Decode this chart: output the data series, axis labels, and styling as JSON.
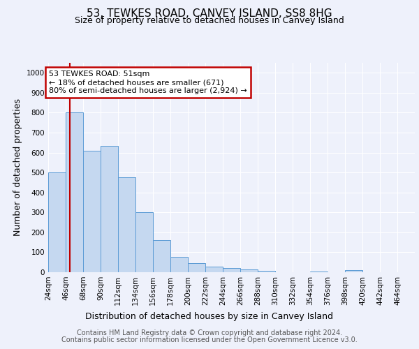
{
  "title": "53, TEWKES ROAD, CANVEY ISLAND, SS8 8HG",
  "subtitle": "Size of property relative to detached houses in Canvey Island",
  "xlabel": "Distribution of detached houses by size in Canvey Island",
  "ylabel": "Number of detached properties",
  "footer_line1": "Contains HM Land Registry data © Crown copyright and database right 2024.",
  "footer_line2": "Contains public sector information licensed under the Open Government Licence v3.0.",
  "bin_starts": [
    24,
    46,
    68,
    90,
    112,
    134,
    156,
    178,
    200,
    222,
    244,
    266,
    288,
    310,
    332,
    354,
    376,
    398,
    420,
    442
  ],
  "bin_width": 22,
  "bar_values": [
    500,
    800,
    610,
    635,
    475,
    300,
    160,
    78,
    47,
    27,
    22,
    13,
    8,
    0,
    0,
    5,
    0,
    10,
    0,
    0
  ],
  "bar_color": "#c5d8f0",
  "bar_edge_color": "#5b9bd5",
  "property_size": 51,
  "property_label": "53 TEWKES ROAD: 51sqm",
  "annotation_line1": "← 18% of detached houses are smaller (671)",
  "annotation_line2": "80% of semi-detached houses are larger (2,924) →",
  "vline_color": "#c00000",
  "annotation_box_edge_color": "#c00000",
  "xlim_start": 24,
  "xlim_end": 464,
  "ylim": [
    0,
    1050
  ],
  "yticks": [
    0,
    100,
    200,
    300,
    400,
    500,
    600,
    700,
    800,
    900,
    1000
  ],
  "xtick_labels": [
    "24sqm",
    "46sqm",
    "68sqm",
    "90sqm",
    "112sqm",
    "134sqm",
    "156sqm",
    "178sqm",
    "200sqm",
    "222sqm",
    "244sqm",
    "266sqm",
    "288sqm",
    "310sqm",
    "332sqm",
    "354sqm",
    "376sqm",
    "398sqm",
    "420sqm",
    "442sqm",
    "464sqm"
  ],
  "bg_color": "#eef1fb",
  "grid_color": "#d0d8f0",
  "title_fontsize": 11,
  "subtitle_fontsize": 9,
  "xlabel_fontsize": 9,
  "ylabel_fontsize": 9,
  "tick_fontsize": 7.5,
  "annotation_fontsize": 8,
  "footer_fontsize": 7
}
